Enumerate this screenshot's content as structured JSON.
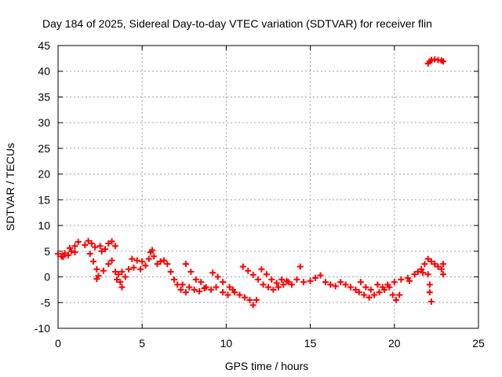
{
  "chart_data": {
    "type": "scatter",
    "title": "Day 184 of 2025, Sidereal Day-to-day VTEC variation (SDTVAR) for receiver flin",
    "xlabel": "GPS time / hours",
    "ylabel": "SDTVAR / TECUs",
    "xlim": [
      0,
      25
    ],
    "ylim": [
      -10,
      45
    ],
    "xticks": [
      "0",
      "5",
      "10",
      "15",
      "20",
      "25"
    ],
    "yticks": [
      "-10",
      "-5",
      "0",
      "5",
      "10",
      "15",
      "20",
      "25",
      "30",
      "35",
      "40",
      "45"
    ],
    "grid": true,
    "marker": "+",
    "color": "#ff0000",
    "series": [
      {
        "name": "SDTVAR",
        "points": [
          [
            0.0,
            4.5
          ],
          [
            0.2,
            4.0
          ],
          [
            0.4,
            4.6
          ],
          [
            0.6,
            4.2
          ],
          [
            0.8,
            5.0
          ],
          [
            1.0,
            6.0
          ],
          [
            1.2,
            6.8
          ],
          [
            1.0,
            4.8
          ],
          [
            0.7,
            5.6
          ],
          [
            0.3,
            3.9
          ],
          [
            1.6,
            6.2
          ],
          [
            1.8,
            7.0
          ],
          [
            2.0,
            6.5
          ],
          [
            2.2,
            5.8
          ],
          [
            2.5,
            6.0
          ],
          [
            2.8,
            5.4
          ],
          [
            3.0,
            6.5
          ],
          [
            3.2,
            6.9
          ],
          [
            3.4,
            6.0
          ],
          [
            2.6,
            5.0
          ],
          [
            1.9,
            4.5
          ],
          [
            2.1,
            3.0
          ],
          [
            2.3,
            1.5
          ],
          [
            2.4,
            0.2
          ],
          [
            2.3,
            -0.4
          ],
          [
            2.7,
            1.2
          ],
          [
            3.0,
            2.5
          ],
          [
            3.2,
            3.2
          ],
          [
            3.4,
            1.0
          ],
          [
            3.5,
            -0.5
          ],
          [
            3.6,
            0.5
          ],
          [
            3.8,
            1.0
          ],
          [
            3.7,
            -1.0
          ],
          [
            3.8,
            -2.0
          ],
          [
            4.0,
            0.0
          ],
          [
            4.2,
            1.5
          ],
          [
            4.4,
            3.5
          ],
          [
            4.5,
            1.8
          ],
          [
            4.7,
            3.2
          ],
          [
            4.9,
            1.5
          ],
          [
            5.0,
            3.0
          ],
          [
            5.2,
            2.2
          ],
          [
            5.4,
            3.5
          ],
          [
            5.5,
            4.8
          ],
          [
            5.6,
            5.2
          ],
          [
            5.7,
            4.0
          ],
          [
            5.9,
            2.5
          ],
          [
            6.1,
            3.0
          ],
          [
            6.3,
            3.2
          ],
          [
            6.5,
            2.5
          ],
          [
            6.7,
            1.0
          ],
          [
            6.9,
            -0.5
          ],
          [
            7.1,
            -1.5
          ],
          [
            7.3,
            -2.5
          ],
          [
            7.6,
            -3.0
          ],
          [
            7.4,
            -1.5
          ],
          [
            7.8,
            -2.0
          ],
          [
            8.1,
            -2.5
          ],
          [
            8.4,
            -2.8
          ],
          [
            8.7,
            -2.2
          ],
          [
            7.6,
            2.5
          ],
          [
            7.9,
            1.0
          ],
          [
            8.2,
            -0.5
          ],
          [
            8.5,
            -1.0
          ],
          [
            8.8,
            -2.0
          ],
          [
            9.1,
            -2.5
          ],
          [
            9.4,
            -2.0
          ],
          [
            9.8,
            -3.0
          ],
          [
            10.1,
            -3.5
          ],
          [
            10.4,
            -2.5
          ],
          [
            9.2,
            0.8
          ],
          [
            9.5,
            0.0
          ],
          [
            9.8,
            -1.0
          ],
          [
            10.2,
            -2.0
          ],
          [
            10.5,
            -3.0
          ],
          [
            10.8,
            -3.5
          ],
          [
            11.1,
            -4.0
          ],
          [
            11.4,
            -4.5
          ],
          [
            11.6,
            -5.5
          ],
          [
            11.8,
            -4.5
          ],
          [
            11.0,
            2.0
          ],
          [
            11.3,
            1.2
          ],
          [
            11.6,
            0.4
          ],
          [
            11.9,
            -0.5
          ],
          [
            12.2,
            -1.5
          ],
          [
            12.5,
            -2.0
          ],
          [
            12.8,
            -2.5
          ],
          [
            13.1,
            -2.0
          ],
          [
            13.4,
            -1.5
          ],
          [
            13.7,
            -1.0
          ],
          [
            12.1,
            1.5
          ],
          [
            12.4,
            0.5
          ],
          [
            12.7,
            -0.5
          ],
          [
            13.0,
            -1.2
          ],
          [
            13.3,
            -0.5
          ],
          [
            13.6,
            -0.8
          ],
          [
            13.9,
            -1.5
          ],
          [
            14.2,
            -0.5
          ],
          [
            14.4,
            2.0
          ],
          [
            14.6,
            -1.0
          ],
          [
            15.0,
            -0.8
          ],
          [
            15.3,
            -0.2
          ],
          [
            15.6,
            0.3
          ],
          [
            15.9,
            -1.0
          ],
          [
            16.2,
            -1.5
          ],
          [
            16.5,
            -1.8
          ],
          [
            16.8,
            -1.0
          ],
          [
            17.1,
            -1.5
          ],
          [
            17.4,
            -2.0
          ],
          [
            17.7,
            -2.5
          ],
          [
            17.9,
            -3.0
          ],
          [
            18.2,
            -3.5
          ],
          [
            18.5,
            -4.0
          ],
          [
            18.8,
            -3.5
          ],
          [
            19.1,
            -3.0
          ],
          [
            19.4,
            -2.5
          ],
          [
            19.7,
            -2.0
          ],
          [
            19.9,
            -3.5
          ],
          [
            20.1,
            -4.5
          ],
          [
            20.3,
            -3.5
          ],
          [
            18.0,
            -1.0
          ],
          [
            18.3,
            -2.0
          ],
          [
            18.6,
            -2.5
          ],
          [
            19.0,
            -1.5
          ],
          [
            19.3,
            -2.0
          ],
          [
            19.6,
            -1.5
          ],
          [
            20.0,
            -1.0
          ],
          [
            20.4,
            -0.5
          ],
          [
            20.8,
            -0.2
          ],
          [
            21.2,
            0.5
          ],
          [
            21.4,
            1.0
          ],
          [
            21.6,
            1.5
          ],
          [
            21.8,
            2.5
          ],
          [
            22.0,
            3.5
          ],
          [
            22.2,
            3.0
          ],
          [
            22.4,
            2.5
          ],
          [
            22.6,
            2.0
          ],
          [
            22.8,
            1.5
          ],
          [
            22.9,
            0.5
          ],
          [
            22.9,
            2.5
          ],
          [
            22.0,
            0.5
          ],
          [
            22.1,
            -1.5
          ],
          [
            22.1,
            -3.0
          ],
          [
            22.2,
            -4.8
          ],
          [
            21.7,
            0.8
          ],
          [
            20.9,
            -0.8
          ],
          [
            22.0,
            41.5
          ],
          [
            22.1,
            41.9
          ],
          [
            22.2,
            42.2
          ],
          [
            22.4,
            42.3
          ],
          [
            22.6,
            42.2
          ],
          [
            22.8,
            42.1
          ],
          [
            22.9,
            41.9
          ]
        ]
      }
    ]
  }
}
